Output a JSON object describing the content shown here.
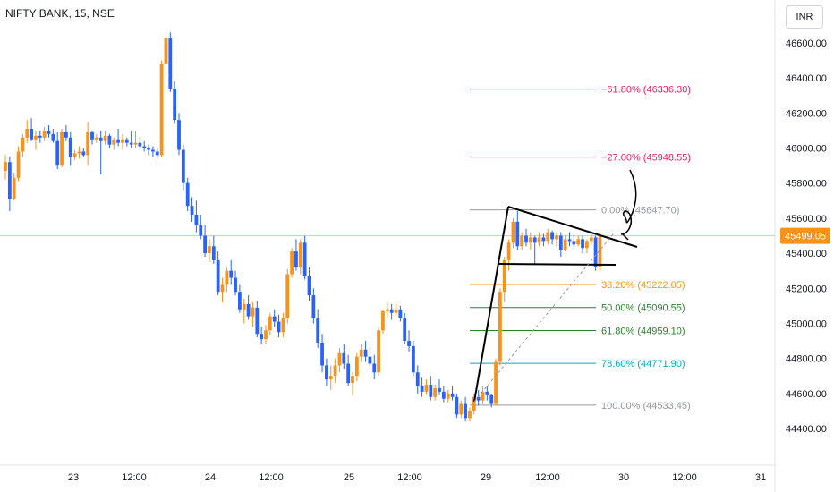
{
  "header": {
    "symbol": "NIFTY BANK, 15, NSE",
    "currency": "INR"
  },
  "price_badge": "45499.05",
  "colors": {
    "up": "#f7931a",
    "down": "#2962ff",
    "price_line": "#f7931a"
  },
  "chart_data": {
    "type": "candlestick",
    "ylim": [
      44300,
      46750
    ],
    "yticks": [
      "46600.00",
      "46400.00",
      "46200.00",
      "46000.00",
      "45800.00",
      "45600.00",
      "45400.00",
      "45200.00",
      "45000.00",
      "44800.00",
      "44600.00",
      "44400.00"
    ],
    "ytick_values": [
      46600,
      46400,
      46200,
      46000,
      45800,
      45600,
      45400,
      45200,
      45000,
      44800,
      44600,
      44400
    ],
    "xticks": [
      "23",
      "12:00",
      "24",
      "12:00",
      "25",
      "12:00",
      "29",
      "12:00",
      "30",
      "12:00",
      "31"
    ],
    "current_price": 45499.05,
    "fibonacci": [
      {
        "label": "−61.80% (46336.30)",
        "price": 46336.3,
        "color": "#e91e63"
      },
      {
        "label": "−27.00% (45948.55)",
        "price": 45948.55,
        "color": "#e91e63"
      },
      {
        "label": "0.00% (45647.70)",
        "price": 45647.7,
        "color": "#9598a1"
      },
      {
        "label": "38.20% (45222.05)",
        "price": 45222.05,
        "color": "#f7931a"
      },
      {
        "label": "50.00% (45090.55)",
        "price": 45090.55,
        "color": "#2e7d32"
      },
      {
        "label": "61.80% (44959.10)",
        "price": 44959.1,
        "color": "#2e7d32"
      },
      {
        "label": "78.60% (44771.90)",
        "price": 44771.9,
        "color": "#00acc1"
      },
      {
        "label": "100.00% (44533.45)",
        "price": 44533.45,
        "color": "#9598a1"
      }
    ],
    "candles": [
      [
        45870,
        45960,
        45820,
        45920
      ],
      [
        45920,
        45950,
        45640,
        45710
      ],
      [
        45710,
        45860,
        45700,
        45830
      ],
      [
        45830,
        46010,
        45810,
        45980
      ],
      [
        45980,
        46080,
        45950,
        46060
      ],
      [
        46060,
        46160,
        46030,
        46110
      ],
      [
        46110,
        46170,
        46040,
        46050
      ],
      [
        46050,
        46100,
        45990,
        46070
      ],
      [
        46070,
        46100,
        46030,
        46060
      ],
      [
        46060,
        46120,
        46040,
        46100
      ],
      [
        46100,
        46130,
        46060,
        46080
      ],
      [
        46080,
        46110,
        46030,
        46040
      ],
      [
        46040,
        46090,
        45880,
        45900
      ],
      [
        45900,
        46110,
        45890,
        46090
      ],
      [
        46090,
        46130,
        46040,
        46060
      ],
      [
        46060,
        46090,
        45900,
        45950
      ],
      [
        45950,
        45990,
        45930,
        45970
      ],
      [
        45970,
        46010,
        45940,
        45980
      ],
      [
        45980,
        46000,
        45950,
        45960
      ],
      [
        45960,
        46150,
        45900,
        46090
      ],
      [
        46090,
        46100,
        46020,
        46050
      ],
      [
        46050,
        46080,
        46030,
        46060
      ],
      [
        46060,
        46100,
        45850,
        46040
      ],
      [
        46040,
        46100,
        46020,
        46070
      ],
      [
        46070,
        46080,
        46000,
        46020
      ],
      [
        46020,
        46060,
        45990,
        46050
      ],
      [
        46050,
        46110,
        46010,
        46030
      ],
      [
        46030,
        46080,
        45990,
        46050
      ],
      [
        46050,
        46060,
        46010,
        46030
      ],
      [
        46030,
        46100,
        46000,
        46020
      ],
      [
        46020,
        46100,
        46000,
        46030
      ],
      [
        46030,
        46060,
        46000,
        46010
      ],
      [
        46010,
        46040,
        45980,
        46000
      ],
      [
        46000,
        46020,
        45960,
        45990
      ],
      [
        45990,
        46010,
        45950,
        45980
      ],
      [
        45980,
        46000,
        45940,
        45960
      ],
      [
        45960,
        46500,
        45950,
        46480
      ],
      [
        46480,
        46640,
        46420,
        46630
      ],
      [
        46630,
        46660,
        46320,
        46340
      ],
      [
        46340,
        46380,
        46140,
        46160
      ],
      [
        46160,
        46200,
        45960,
        45990
      ],
      [
        45990,
        46020,
        45760,
        45800
      ],
      [
        45800,
        45830,
        45640,
        45670
      ],
      [
        45670,
        45720,
        45580,
        45620
      ],
      [
        45620,
        45700,
        45520,
        45560
      ],
      [
        45560,
        45620,
        45480,
        45500
      ],
      [
        45500,
        45560,
        45380,
        45400
      ],
      [
        45400,
        45480,
        45350,
        45440
      ],
      [
        45440,
        45500,
        45340,
        45360
      ],
      [
        45360,
        45410,
        45160,
        45180
      ],
      [
        45180,
        45260,
        45120,
        45220
      ],
      [
        45220,
        45320,
        45180,
        45300
      ],
      [
        45300,
        45360,
        45220,
        45260
      ],
      [
        45260,
        45300,
        45160,
        45180
      ],
      [
        45180,
        45220,
        45060,
        45080
      ],
      [
        45080,
        45140,
        45000,
        45110
      ],
      [
        45110,
        45160,
        45020,
        45040
      ],
      [
        45040,
        45120,
        44980,
        45090
      ],
      [
        45090,
        45130,
        44920,
        44940
      ],
      [
        44940,
        44980,
        44880,
        44910
      ],
      [
        44910,
        44990,
        44880,
        44960
      ],
      [
        44960,
        45060,
        44930,
        45040
      ],
      [
        45040,
        45080,
        44980,
        45010
      ],
      [
        45010,
        45050,
        44920,
        44950
      ],
      [
        44950,
        45060,
        44920,
        45030
      ],
      [
        45030,
        45310,
        45000,
        45280
      ],
      [
        45280,
        45430,
        45260,
        45410
      ],
      [
        45410,
        45480,
        45300,
        45320
      ],
      [
        45320,
        45480,
        45280,
        45460
      ],
      [
        45460,
        45500,
        45250,
        45270
      ],
      [
        45270,
        45320,
        45130,
        45160
      ],
      [
        45160,
        45200,
        45000,
        45030
      ],
      [
        45030,
        45080,
        44860,
        44890
      ],
      [
        44890,
        44940,
        44720,
        44760
      ],
      [
        44760,
        44800,
        44640,
        44680
      ],
      [
        44680,
        44760,
        44620,
        44700
      ],
      [
        44700,
        44800,
        44660,
        44760
      ],
      [
        44760,
        44860,
        44720,
        44830
      ],
      [
        44830,
        44880,
        44740,
        44770
      ],
      [
        44770,
        44820,
        44640,
        44660
      ],
      [
        44660,
        44720,
        44590,
        44700
      ],
      [
        44700,
        44830,
        44670,
        44810
      ],
      [
        44810,
        44880,
        44780,
        44850
      ],
      [
        44850,
        44900,
        44780,
        44810
      ],
      [
        44810,
        44860,
        44740,
        44770
      ],
      [
        44770,
        44820,
        44680,
        44720
      ],
      [
        44720,
        44980,
        44700,
        44960
      ],
      [
        44960,
        45080,
        44940,
        45070
      ],
      [
        45070,
        45120,
        45030,
        45080
      ],
      [
        45080,
        45110,
        45020,
        45060
      ],
      [
        45060,
        45110,
        45040,
        45080
      ],
      [
        45080,
        45100,
        45010,
        45030
      ],
      [
        45030,
        45060,
        44880,
        44900
      ],
      [
        44900,
        44960,
        44840,
        44870
      ],
      [
        44870,
        44900,
        44700,
        44720
      ],
      [
        44720,
        44760,
        44600,
        44640
      ],
      [
        44640,
        44690,
        44580,
        44610
      ],
      [
        44610,
        44680,
        44590,
        44650
      ],
      [
        44650,
        44700,
        44560,
        44580
      ],
      [
        44580,
        44650,
        44560,
        44630
      ],
      [
        44630,
        44680,
        44590,
        44610
      ],
      [
        44610,
        44640,
        44550,
        44570
      ],
      [
        44570,
        44620,
        44550,
        44600
      ],
      [
        44600,
        44640,
        44560,
        44580
      ],
      [
        44580,
        44600,
        44460,
        44480
      ],
      [
        44480,
        44560,
        44460,
        44540
      ],
      [
        44540,
        44580,
        44440,
        44460
      ],
      [
        44460,
        44520,
        44440,
        44500
      ],
      [
        44500,
        44600,
        44480,
        44580
      ],
      [
        44580,
        44620,
        44530,
        44560
      ],
      [
        44560,
        44640,
        44540,
        44610
      ],
      [
        44610,
        44640,
        44560,
        44590
      ],
      [
        44590,
        44600,
        44520,
        44540
      ],
      [
        44540,
        44800,
        44530,
        44780
      ],
      [
        44780,
        45200,
        44760,
        45180
      ],
      [
        45180,
        45380,
        45120,
        45360
      ],
      [
        45360,
        45480,
        45300,
        45460
      ],
      [
        45460,
        45600,
        45430,
        45580
      ],
      [
        45580,
        45640,
        45420,
        45440
      ],
      [
        45440,
        45520,
        45420,
        45500
      ],
      [
        45500,
        45540,
        45440,
        45460
      ],
      [
        45460,
        45520,
        45420,
        45490
      ],
      [
        45490,
        45500,
        45340,
        45460
      ],
      [
        45460,
        45520,
        45440,
        45490
      ],
      [
        45490,
        45510,
        45440,
        45470
      ],
      [
        45470,
        45540,
        45450,
        45520
      ],
      [
        45520,
        45530,
        45450,
        45480
      ],
      [
        45480,
        45520,
        45440,
        45500
      ],
      [
        45500,
        45520,
        45380,
        45420
      ],
      [
        45420,
        45500,
        45410,
        45480
      ],
      [
        45480,
        45520,
        45440,
        45470
      ],
      [
        45470,
        45500,
        45420,
        45450
      ],
      [
        45450,
        45500,
        45440,
        45480
      ],
      [
        45480,
        45500,
        45400,
        45430
      ],
      [
        45430,
        45480,
        45400,
        45470
      ],
      [
        45470,
        45520,
        45450,
        45490
      ],
      [
        45490,
        45500,
        45300,
        45320
      ],
      [
        45320,
        45520,
        45300,
        45499
      ]
    ]
  }
}
